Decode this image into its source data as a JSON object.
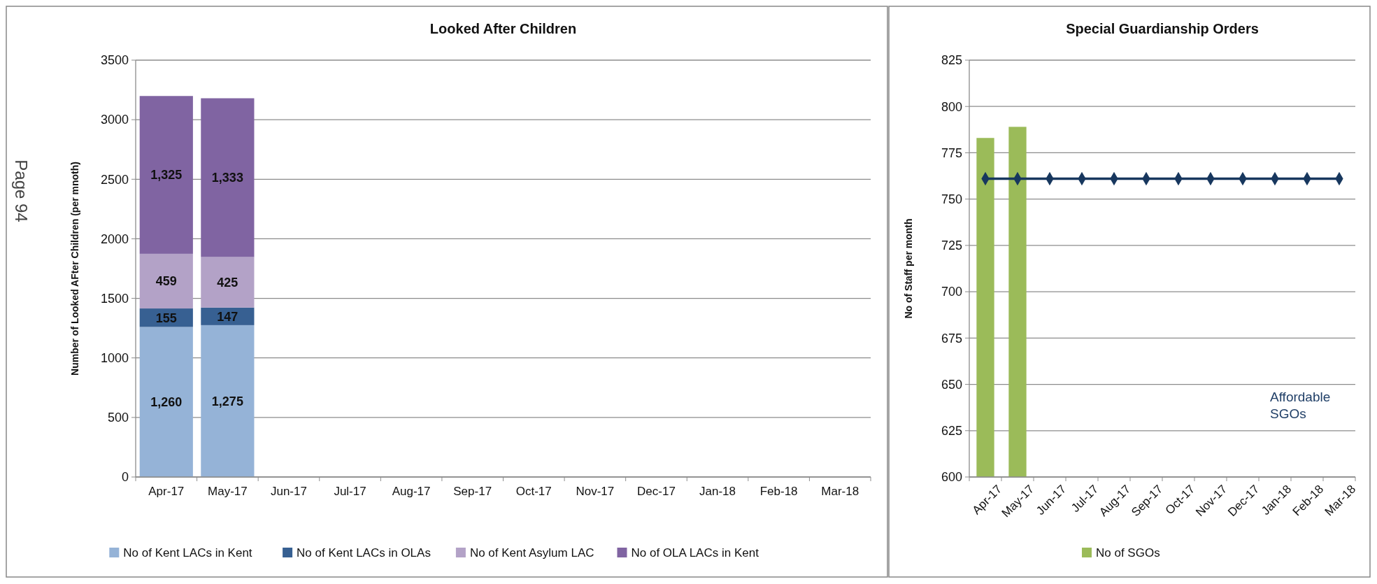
{
  "chart_data": [
    {
      "type": "bar",
      "title": "Looked After Children",
      "ylabel": "Number of Looked AFter Children (per mnoth)",
      "stacked": true,
      "categories": [
        "Apr-17",
        "May-17",
        "Jun-17",
        "Jul-17",
        "Aug-17",
        "Sep-17",
        "Oct-17",
        "Nov-17",
        "Dec-17",
        "Jan-18",
        "Feb-18",
        "Mar-18"
      ],
      "series": [
        {
          "name": "No of Kent LACs in Kent",
          "color": "#95b3d7",
          "values": [
            1260,
            1275,
            null,
            null,
            null,
            null,
            null,
            null,
            null,
            null,
            null,
            null
          ],
          "value_labels": [
            "1,260",
            "1,275",
            null,
            null,
            null,
            null,
            null,
            null,
            null,
            null,
            null,
            null
          ]
        },
        {
          "name": "No of Kent LACs in OLAs",
          "color": "#376092",
          "values": [
            155,
            147,
            null,
            null,
            null,
            null,
            null,
            null,
            null,
            null,
            null,
            null
          ],
          "value_labels": [
            "155",
            "147",
            null,
            null,
            null,
            null,
            null,
            null,
            null,
            null,
            null,
            null
          ]
        },
        {
          "name": "No of Kent Asylum LAC",
          "color": "#b3a2c7",
          "values": [
            459,
            425,
            null,
            null,
            null,
            null,
            null,
            null,
            null,
            null,
            null,
            null
          ],
          "value_labels": [
            "459",
            "425",
            null,
            null,
            null,
            null,
            null,
            null,
            null,
            null,
            null,
            null
          ]
        },
        {
          "name": "No of OLA LACs in Kent",
          "color": "#8064a2",
          "values": [
            1325,
            1333,
            null,
            null,
            null,
            null,
            null,
            null,
            null,
            null,
            null,
            null
          ],
          "value_labels": [
            "1,325",
            "1,333",
            null,
            null,
            null,
            null,
            null,
            null,
            null,
            null,
            null,
            null
          ]
        }
      ],
      "ylim": [
        0,
        3500
      ],
      "yticks": [
        0,
        500,
        1000,
        1500,
        2000,
        2500,
        3000,
        3500
      ],
      "grid": "y",
      "legend": "bottom",
      "annotations": [
        "Page 94"
      ]
    },
    {
      "type": "bar",
      "title": "Special Guardianship Orders",
      "ylabel": "No of Staff per month",
      "categories": [
        "Apr-17",
        "May-17",
        "Jun-17",
        "Jul-17",
        "Aug-17",
        "Sep-17",
        "Oct-17",
        "Nov-17",
        "Dec-17",
        "Jan-18",
        "Feb-18",
        "Mar-18"
      ],
      "series": [
        {
          "name": "No of SGOs",
          "color": "#9bbb59",
          "values": [
            783,
            789,
            null,
            null,
            null,
            null,
            null,
            null,
            null,
            null,
            null,
            null
          ]
        },
        {
          "type": "line",
          "color": "#17375e",
          "marker": "diamond",
          "values": [
            761,
            761,
            761,
            761,
            761,
            761,
            761,
            761,
            761,
            761,
            761,
            761
          ]
        }
      ],
      "ylim": [
        600,
        825
      ],
      "yticks": [
        600,
        625,
        650,
        675,
        700,
        725,
        750,
        775,
        800,
        825
      ],
      "grid": "y",
      "legend": "bottom",
      "annotations": [
        "Affordable SGOs"
      ]
    }
  ]
}
